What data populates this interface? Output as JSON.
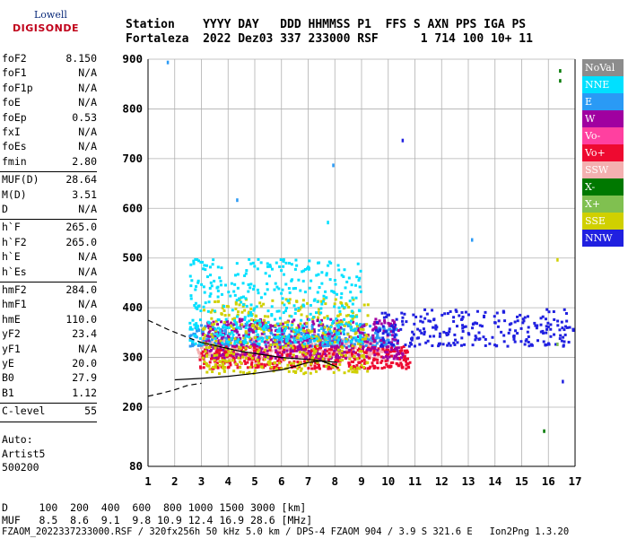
{
  "logo": {
    "line1": "Lowell",
    "line2": "DIGISONDE"
  },
  "header": {
    "line1": "Station    YYYY DAY   DDD HHMMSS P1  FFS S AXN PPS IGA PS",
    "line2": "Fortaleza  2022 Dez03 337 233000 RSF      1 714 100 10+ 11"
  },
  "params": [
    {
      "name": "foF2",
      "value": "8.150"
    },
    {
      "name": "foF1",
      "value": "N/A"
    },
    {
      "name": "foF1p",
      "value": "N/A"
    },
    {
      "name": "foE",
      "value": "N/A"
    },
    {
      "name": "foEp",
      "value": "0.53"
    },
    {
      "name": "fxI",
      "value": "N/A"
    },
    {
      "name": "foEs",
      "value": "N/A"
    },
    {
      "name": "fmin",
      "value": "2.80"
    },
    {
      "name": "MUF(D)",
      "value": "28.64"
    },
    {
      "name": "M(D)",
      "value": "3.51"
    },
    {
      "name": "D",
      "value": "N/A"
    },
    {
      "name": "h`F",
      "value": "265.0"
    },
    {
      "name": "h`F2",
      "value": "265.0"
    },
    {
      "name": "h`E",
      "value": "N/A"
    },
    {
      "name": "h`Es",
      "value": "N/A"
    },
    {
      "name": "hmF2",
      "value": "284.0"
    },
    {
      "name": "hmF1",
      "value": "N/A"
    },
    {
      "name": "hmE",
      "value": "110.0"
    },
    {
      "name": "yF2",
      "value": "23.4"
    },
    {
      "name": "yF1",
      "value": "N/A"
    },
    {
      "name": "yE",
      "value": "20.0"
    },
    {
      "name": "B0",
      "value": "27.9"
    },
    {
      "name": "B1",
      "value": "1.12"
    },
    {
      "name": "C-level",
      "value": "55"
    }
  ],
  "auto": [
    "Auto:",
    "Artist5",
    "500200"
  ],
  "footer": {
    "line1": "D     100  200  400  600  800 1000 1500 3000 [km]",
    "line2": "MUF   8.5  8.6  9.1  9.8 10.9 12.4 16.9 28.6 [MHz]",
    "line3": "FZAOM_2022337233000.RSF / 320fx256h 50 kHz 5.0 km / DPS-4 FZAOM 904 / 3.9 S 321.6 E   Ion2Png 1.3.20"
  },
  "legend": [
    {
      "label": "NoVal",
      "color": "#8c8c8c"
    },
    {
      "label": "NNE",
      "color": "#00e0ff"
    },
    {
      "label": "E",
      "color": "#2a9af5"
    },
    {
      "label": "W",
      "color": "#a000a0"
    },
    {
      "label": "Vo-",
      "color": "#ff40a0"
    },
    {
      "label": "Vo+",
      "color": "#ee0a30"
    },
    {
      "label": "SSW",
      "color": "#f4b0b0"
    },
    {
      "label": "X-",
      "color": "#007800"
    },
    {
      "label": "X+",
      "color": "#80c050"
    },
    {
      "label": "SSE",
      "color": "#d0d000"
    },
    {
      "label": "NNW",
      "color": "#2020e0"
    }
  ],
  "chart_data": {
    "type": "scatter",
    "title": "",
    "xlabel": "",
    "ylabel": "",
    "xlim": [
      1,
      17
    ],
    "ylim": [
      80,
      900
    ],
    "x_ticks": [
      "1",
      "2",
      "3",
      "4",
      "5",
      "6",
      "7",
      "8",
      "9",
      "10",
      "11",
      "12",
      "13",
      "14",
      "15",
      "16",
      "17"
    ],
    "y_ticks": [
      "80",
      "200",
      "300",
      "400",
      "500",
      "600",
      "700",
      "800",
      "900"
    ],
    "grid": true,
    "legend_placement": "right",
    "ionogram_clusters": [
      {
        "name": "SSW",
        "x_range": [
          2.8,
          10.0
        ],
        "h_range": [
          300,
          345
        ],
        "color": "#f4b0b0"
      },
      {
        "name": "E",
        "x_range": [
          2.5,
          10.3
        ],
        "h_range": [
          325,
          370
        ],
        "color": "#2a9af5"
      },
      {
        "name": "Vo+",
        "x_range": [
          2.9,
          10.8
        ],
        "h_range": [
          280,
          325
        ],
        "color": "#ee0a30"
      },
      {
        "name": "W",
        "x_range": [
          3.0,
          10.5
        ],
        "h_range": [
          300,
          380
        ],
        "color": "#a000a0"
      },
      {
        "name": "SSE",
        "x_range": [
          3.0,
          9.2
        ],
        "h_range": [
          270,
          420
        ],
        "color": "#d0d000"
      },
      {
        "name": "NNW",
        "x_range": [
          9.5,
          16.9
        ],
        "h_range": [
          325,
          400
        ],
        "color": "#2020e0"
      },
      {
        "name": "NNE",
        "x_range": [
          2.5,
          9.0
        ],
        "h_range": [
          330,
          500
        ],
        "color": "#00e0ff"
      }
    ],
    "profile_solid": [
      [
        2.0,
        255
      ],
      [
        3.0,
        258
      ],
      [
        4.0,
        262
      ],
      [
        5.0,
        268
      ],
      [
        6.0,
        275
      ],
      [
        6.5,
        282
      ],
      [
        7.0,
        290
      ],
      [
        7.5,
        293
      ],
      [
        8.0,
        283
      ],
      [
        8.1,
        280
      ]
    ],
    "profile_dashed": [
      [
        1.0,
        222
      ],
      [
        1.5,
        228
      ],
      [
        2.0,
        235
      ],
      [
        2.5,
        244
      ],
      [
        3.0,
        248
      ]
    ],
    "profile_upper_dashed": [
      [
        1.0,
        375
      ],
      [
        1.8,
        355
      ],
      [
        2.5,
        340
      ],
      [
        3.0,
        330
      ]
    ],
    "profile_upper_solid": [
      [
        3.0,
        330
      ],
      [
        4.5,
        312
      ],
      [
        6.0,
        300
      ],
      [
        7.0,
        296
      ],
      [
        8.1,
        290
      ]
    ]
  }
}
